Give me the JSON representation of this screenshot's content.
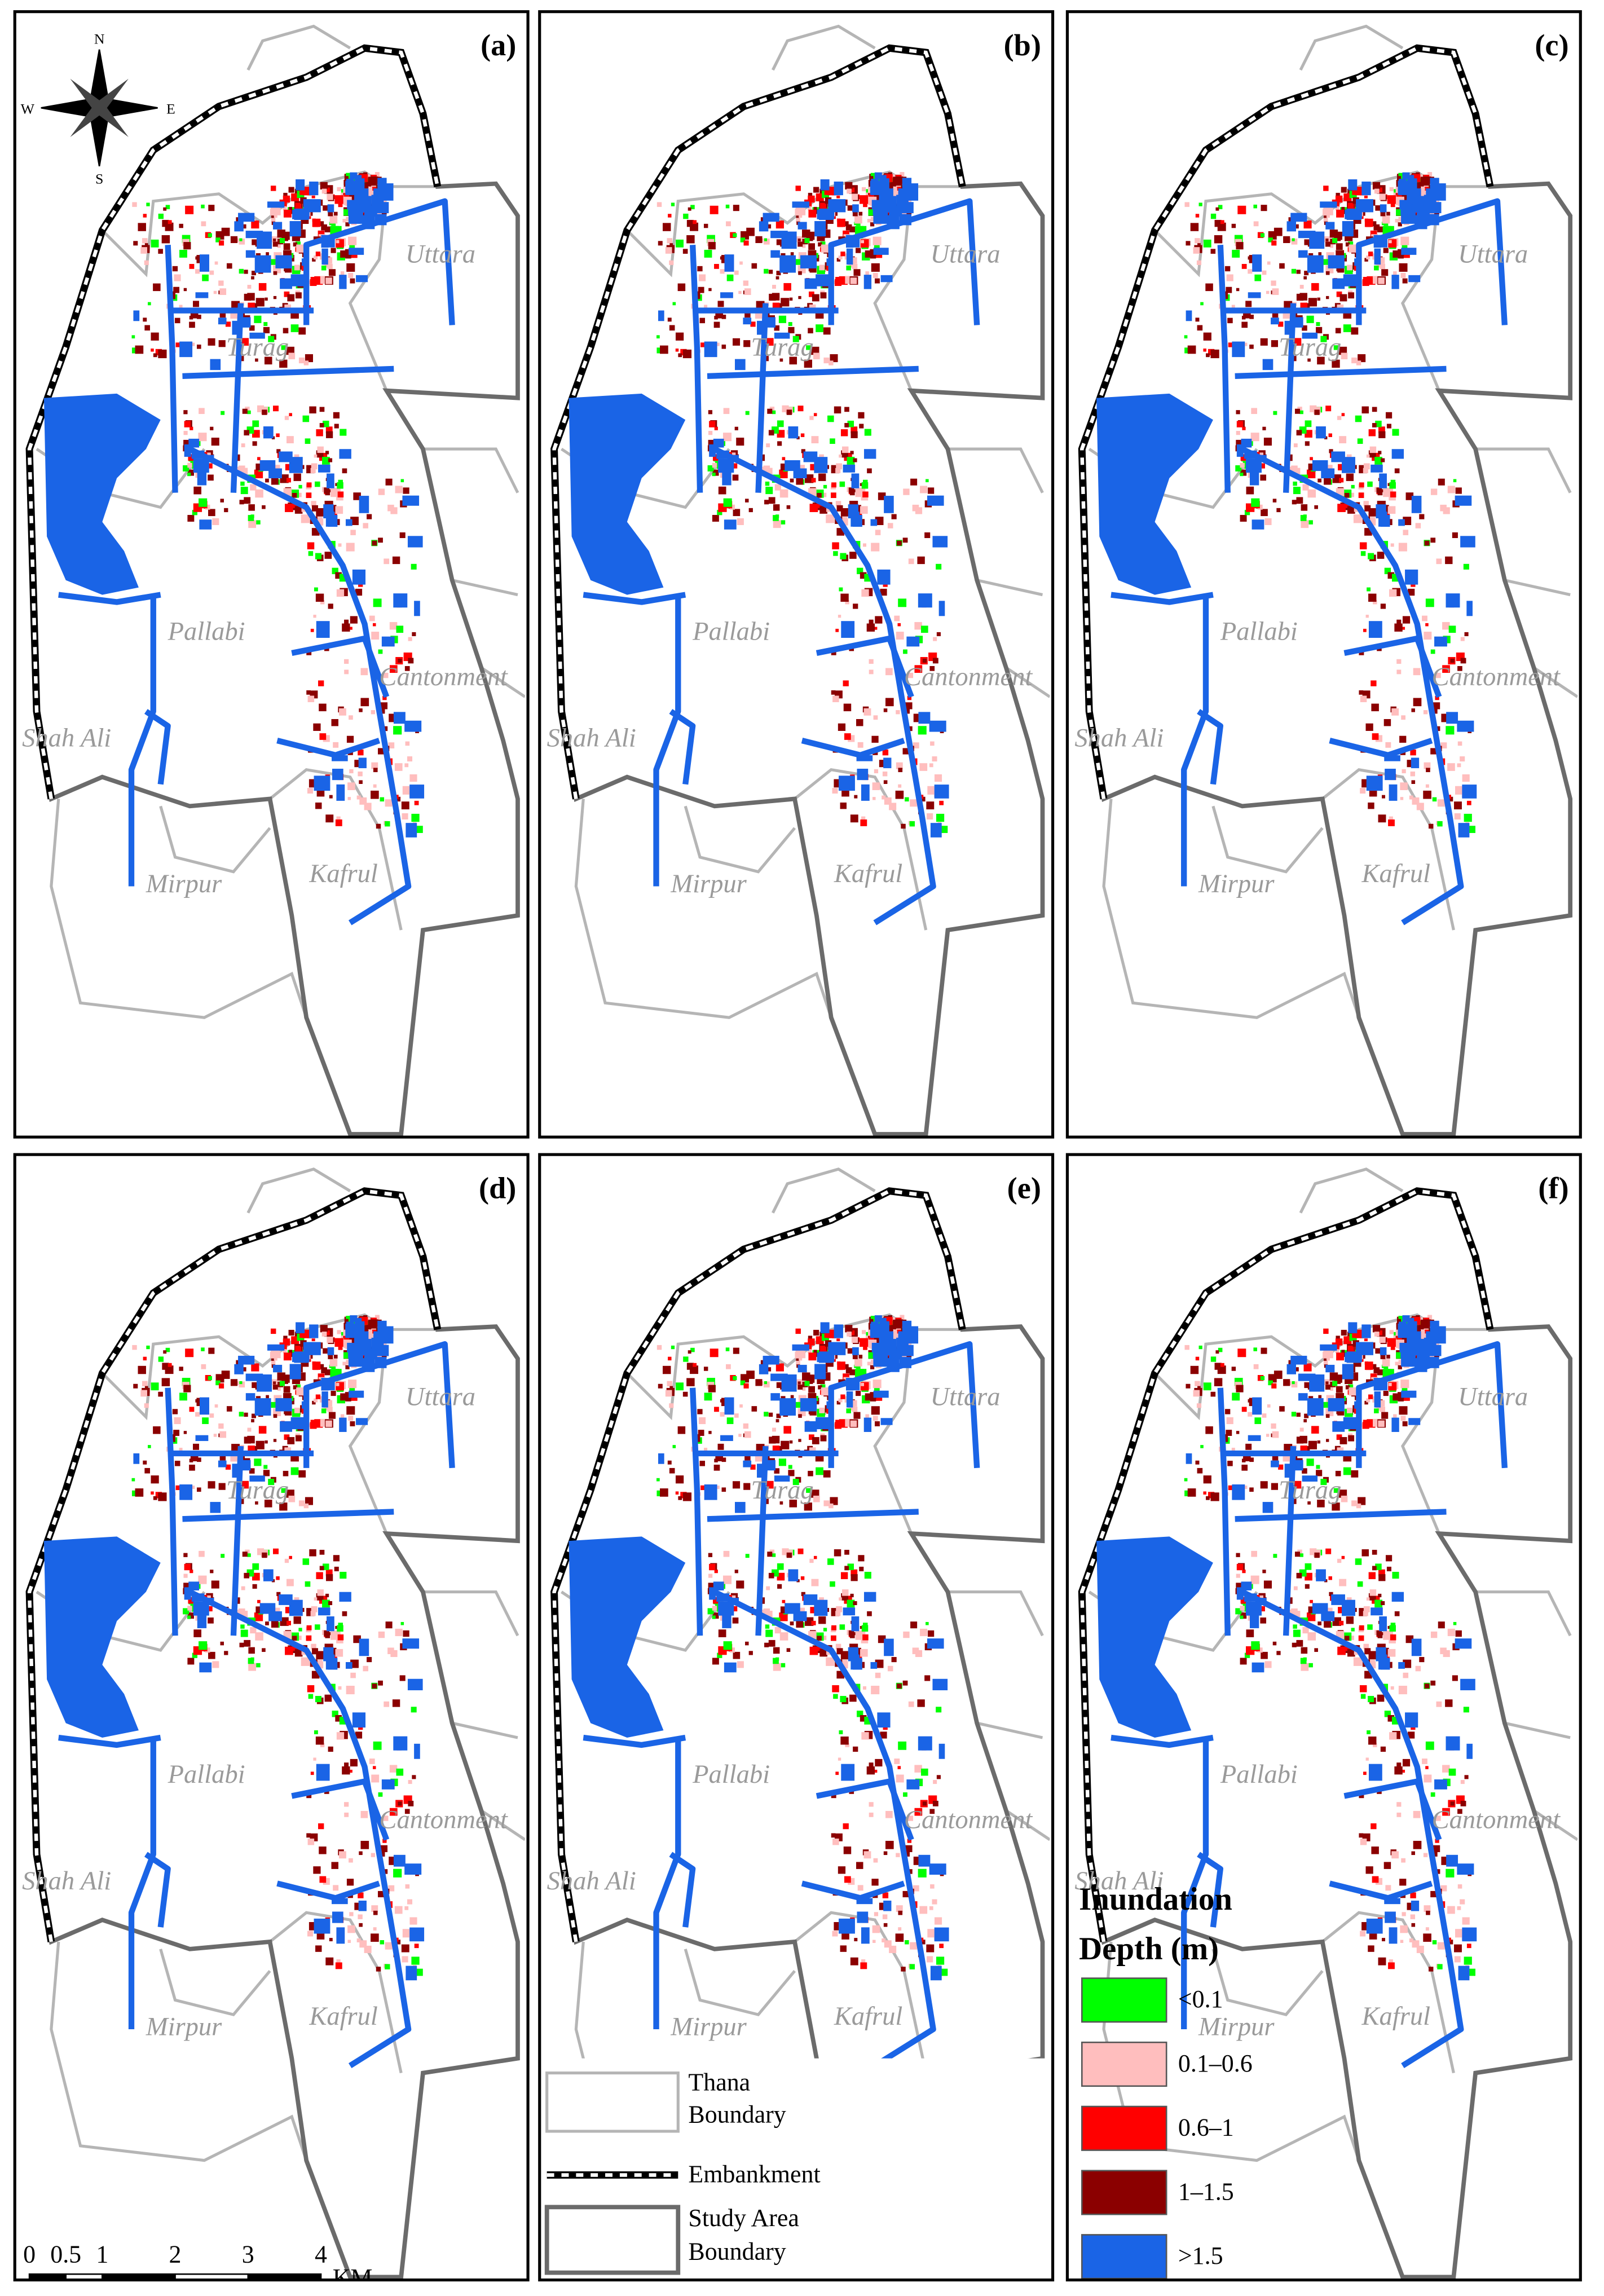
{
  "panels": [
    "(a)",
    "(b)",
    "(c)",
    "(d)",
    "(e)",
    "(f)"
  ],
  "places": [
    "Uttara",
    "Turag",
    "Pallabi",
    "Cantonment",
    "Shah Ali",
    "Mirpur",
    "Kafrul"
  ],
  "compass": {
    "n": "N",
    "s": "S",
    "e": "E",
    "w": "W"
  },
  "legend": {
    "title_lines": [
      "Inundation",
      "Depth (m)"
    ],
    "items": [
      {
        "label": "<0.1",
        "color": "#00ff00"
      },
      {
        "label": "0.1–0.6",
        "color": "#ffbebe"
      },
      {
        "label": "0.6–1",
        "color": "#ff0000"
      },
      {
        "label": "1–1.5",
        "color": "#8b0000"
      },
      {
        "label": ">1.5",
        "color": "#1a64e6"
      }
    ]
  },
  "boundary_legend": {
    "thana": [
      "Thana",
      "Boundary"
    ],
    "embankment": "Embankment",
    "study_area": [
      "Study Area",
      "Boundary"
    ]
  },
  "scale_bar": {
    "ticks": [
      0,
      0.5,
      1,
      2,
      3,
      4
    ],
    "unit": "KM"
  }
}
